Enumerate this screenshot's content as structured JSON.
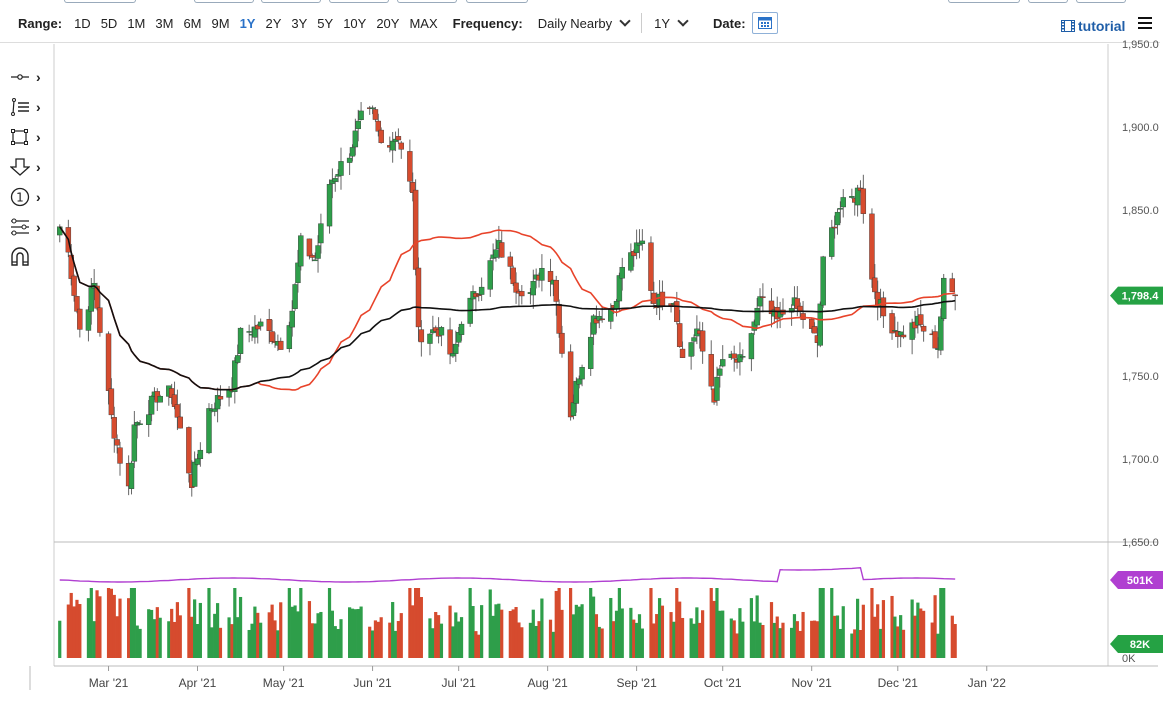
{
  "toolbar": {
    "range_label": "Range:",
    "ranges": [
      "1D",
      "5D",
      "1M",
      "3M",
      "6M",
      "9M",
      "1Y",
      "2Y",
      "3Y",
      "5Y",
      "10Y",
      "20Y",
      "MAX"
    ],
    "active_range": "1Y",
    "frequency_label": "Frequency:",
    "frequency_value": "Daily Nearby",
    "period_value": "1Y",
    "date_label": "Date:",
    "tutorial_label": "tutorial"
  },
  "left_tools": [
    "crosshair-tool-icon",
    "trend-lines-icon",
    "shapes-icon",
    "arrow-down-icon",
    "numbered-annotation-icon",
    "fibonacci-icon",
    "magnet-icon"
  ],
  "colors": {
    "up": "#2e9e4a",
    "down": "#d64b2e",
    "ma_short": "#e8432a",
    "ma_long": "#111111",
    "volume_ma": "#b03fd1",
    "price_badge": "#25a244",
    "volume_badge": "#b03fd1",
    "volume_current_badge": "#25a244"
  },
  "chart_data": {
    "type": "candlestick",
    "price_axis": {
      "ticks": [
        "1,950.0",
        "1,900.0",
        "1,850.0",
        "1,800.0",
        "1,750.0",
        "1,700.0",
        "1,650.0"
      ],
      "ylim": [
        1650,
        1950
      ]
    },
    "x_axis": {
      "ticks": [
        "Mar '21",
        "Apr '21",
        "May '21",
        "Jun '21",
        "Jul '21",
        "Aug '21",
        "Sep '21",
        "Oct '21",
        "Nov '21",
        "Dec '21",
        "Jan '22"
      ]
    },
    "current_price": "1,798.4",
    "volume_axis": {
      "labels": [
        "0K"
      ],
      "volume_ma_label": "501K",
      "current_volume_label": "82K"
    },
    "anchors": [
      {
        "date": "2021-02-12",
        "close": 1840
      },
      {
        "date": "2021-02-15",
        "close": 1824
      },
      {
        "date": "2021-02-19",
        "close": 1778
      },
      {
        "date": "2021-02-24",
        "close": 1805
      },
      {
        "date": "2021-03-02",
        "close": 1725
      },
      {
        "date": "2021-03-05",
        "close": 1700
      },
      {
        "date": "2021-03-08",
        "close": 1682
      },
      {
        "date": "2021-03-10",
        "close": 1720
      },
      {
        "date": "2021-03-18",
        "close": 1738
      },
      {
        "date": "2021-03-23",
        "close": 1740
      },
      {
        "date": "2021-03-30",
        "close": 1686
      },
      {
        "date": "2021-04-05",
        "close": 1730
      },
      {
        "date": "2021-04-13",
        "close": 1745
      },
      {
        "date": "2021-04-16",
        "close": 1775
      },
      {
        "date": "2021-04-23",
        "close": 1780
      },
      {
        "date": "2021-04-30",
        "close": 1770
      },
      {
        "date": "2021-05-04",
        "close": 1790
      },
      {
        "date": "2021-05-07",
        "close": 1830
      },
      {
        "date": "2021-05-12",
        "close": 1820
      },
      {
        "date": "2021-05-17",
        "close": 1866
      },
      {
        "date": "2021-05-24",
        "close": 1885
      },
      {
        "date": "2021-05-28",
        "close": 1905
      },
      {
        "date": "2021-06-01",
        "close": 1908
      },
      {
        "date": "2021-06-04",
        "close": 1890
      },
      {
        "date": "2021-06-10",
        "close": 1895
      },
      {
        "date": "2021-06-15",
        "close": 1858
      },
      {
        "date": "2021-06-17",
        "close": 1775
      },
      {
        "date": "2021-06-24",
        "close": 1778
      },
      {
        "date": "2021-06-29",
        "close": 1760
      },
      {
        "date": "2021-07-02",
        "close": 1785
      },
      {
        "date": "2021-07-07",
        "close": 1800
      },
      {
        "date": "2021-07-15",
        "close": 1828
      },
      {
        "date": "2021-07-21",
        "close": 1805
      },
      {
        "date": "2021-07-26",
        "close": 1800
      },
      {
        "date": "2021-07-30",
        "close": 1815
      },
      {
        "date": "2021-08-03",
        "close": 1810
      },
      {
        "date": "2021-08-06",
        "close": 1765
      },
      {
        "date": "2021-08-09",
        "close": 1728
      },
      {
        "date": "2021-08-12",
        "close": 1752
      },
      {
        "date": "2021-08-17",
        "close": 1785
      },
      {
        "date": "2021-08-24",
        "close": 1792
      },
      {
        "date": "2021-08-27",
        "close": 1816
      },
      {
        "date": "2021-09-03",
        "close": 1830
      },
      {
        "date": "2021-09-07",
        "close": 1795
      },
      {
        "date": "2021-09-14",
        "close": 1797
      },
      {
        "date": "2021-09-17",
        "close": 1760
      },
      {
        "date": "2021-09-22",
        "close": 1778
      },
      {
        "date": "2021-09-28",
        "close": 1738
      },
      {
        "date": "2021-10-01",
        "close": 1760
      },
      {
        "date": "2021-10-08",
        "close": 1758
      },
      {
        "date": "2021-10-14",
        "close": 1795
      },
      {
        "date": "2021-10-20",
        "close": 1783
      },
      {
        "date": "2021-10-25",
        "close": 1795
      },
      {
        "date": "2021-10-29",
        "close": 1785
      },
      {
        "date": "2021-11-03",
        "close": 1770
      },
      {
        "date": "2021-11-05",
        "close": 1818
      },
      {
        "date": "2021-11-10",
        "close": 1850
      },
      {
        "date": "2021-11-16",
        "close": 1858
      },
      {
        "date": "2021-11-18",
        "close": 1865
      },
      {
        "date": "2021-11-22",
        "close": 1808
      },
      {
        "date": "2021-11-26",
        "close": 1786
      },
      {
        "date": "2021-12-02",
        "close": 1775
      },
      {
        "date": "2021-12-08",
        "close": 1782
      },
      {
        "date": "2021-12-15",
        "close": 1768
      },
      {
        "date": "2021-12-17",
        "close": 1805
      },
      {
        "date": "2021-12-21",
        "close": 1798.4
      }
    ]
  }
}
